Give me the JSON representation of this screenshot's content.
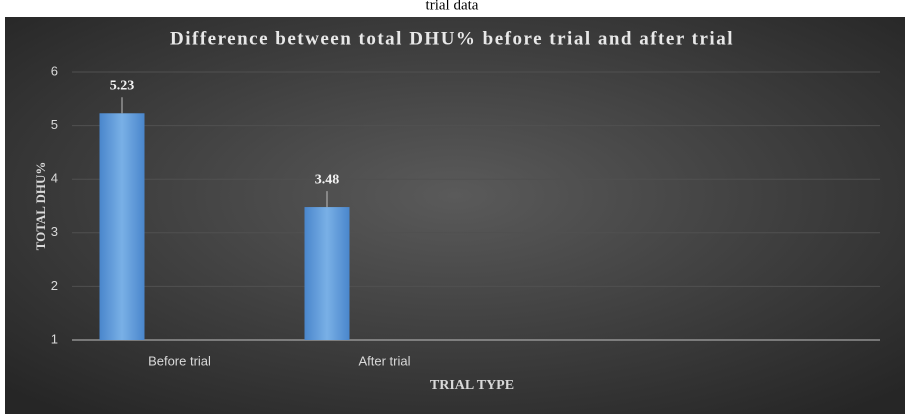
{
  "caption": "trial data",
  "chart_data": {
    "type": "bar",
    "title": "Difference  between total DHU% before trial and after trial",
    "x_label": "TRIAL TYPE",
    "y_label": "TOTAL DHU%",
    "categories": [
      "Before trial",
      "After trial"
    ],
    "values": [
      5.23,
      3.48
    ],
    "color": "#5b9bd5",
    "ylim": [
      1,
      6
    ],
    "yticks": [
      1,
      2,
      3,
      4,
      5,
      6
    ],
    "grid": true,
    "data_labels": true
  }
}
